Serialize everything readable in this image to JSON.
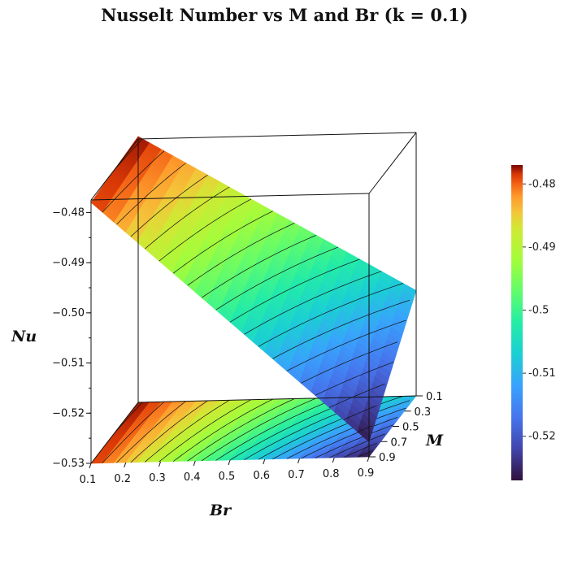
{
  "title": "Nusselt Number vs M and Br (k = 0.1)",
  "chart_data": {
    "type": "surface3d",
    "title": "Nusselt Number vs M and Br (k = 0.1)",
    "xlabel": "Br",
    "ylabel": "M",
    "zlabel": "Nu",
    "x_ticks": [
      "0.1",
      "0.2",
      "0.3",
      "0.4",
      "0.5",
      "0.6",
      "0.7",
      "0.8",
      "0.9"
    ],
    "y_ticks": [
      "0.1",
      "0.3",
      "0.5",
      "0.7",
      "0.9"
    ],
    "z_ticks": [
      "−0.48",
      "−0.49",
      "−0.50",
      "−0.51",
      "−0.52",
      "−0.53"
    ],
    "xlim": [
      0.1,
      0.9
    ],
    "ylim": [
      0.1,
      0.9
    ],
    "zlim": [
      -0.53,
      -0.475
    ],
    "contour_projection": "bottom",
    "colormap": "turbo",
    "colorbar": {
      "range": [
        -0.527,
        -0.477
      ],
      "ticks": [
        {
          "value": -0.48,
          "label": "-0.48"
        },
        {
          "value": -0.49,
          "label": "-0.49"
        },
        {
          "value": -0.5,
          "label": "-0.5"
        },
        {
          "value": -0.51,
          "label": "-0.51"
        },
        {
          "value": -0.52,
          "label": "-0.52"
        }
      ]
    },
    "surface_corners": [
      {
        "Br": 0.1,
        "M": 0.1,
        "Nu": -0.477
      },
      {
        "Br": 0.1,
        "M": 0.9,
        "Nu": -0.478
      },
      {
        "Br": 0.9,
        "M": 0.1,
        "Nu": -0.509
      },
      {
        "Br": 0.9,
        "M": 0.9,
        "Nu": -0.527
      }
    ]
  }
}
